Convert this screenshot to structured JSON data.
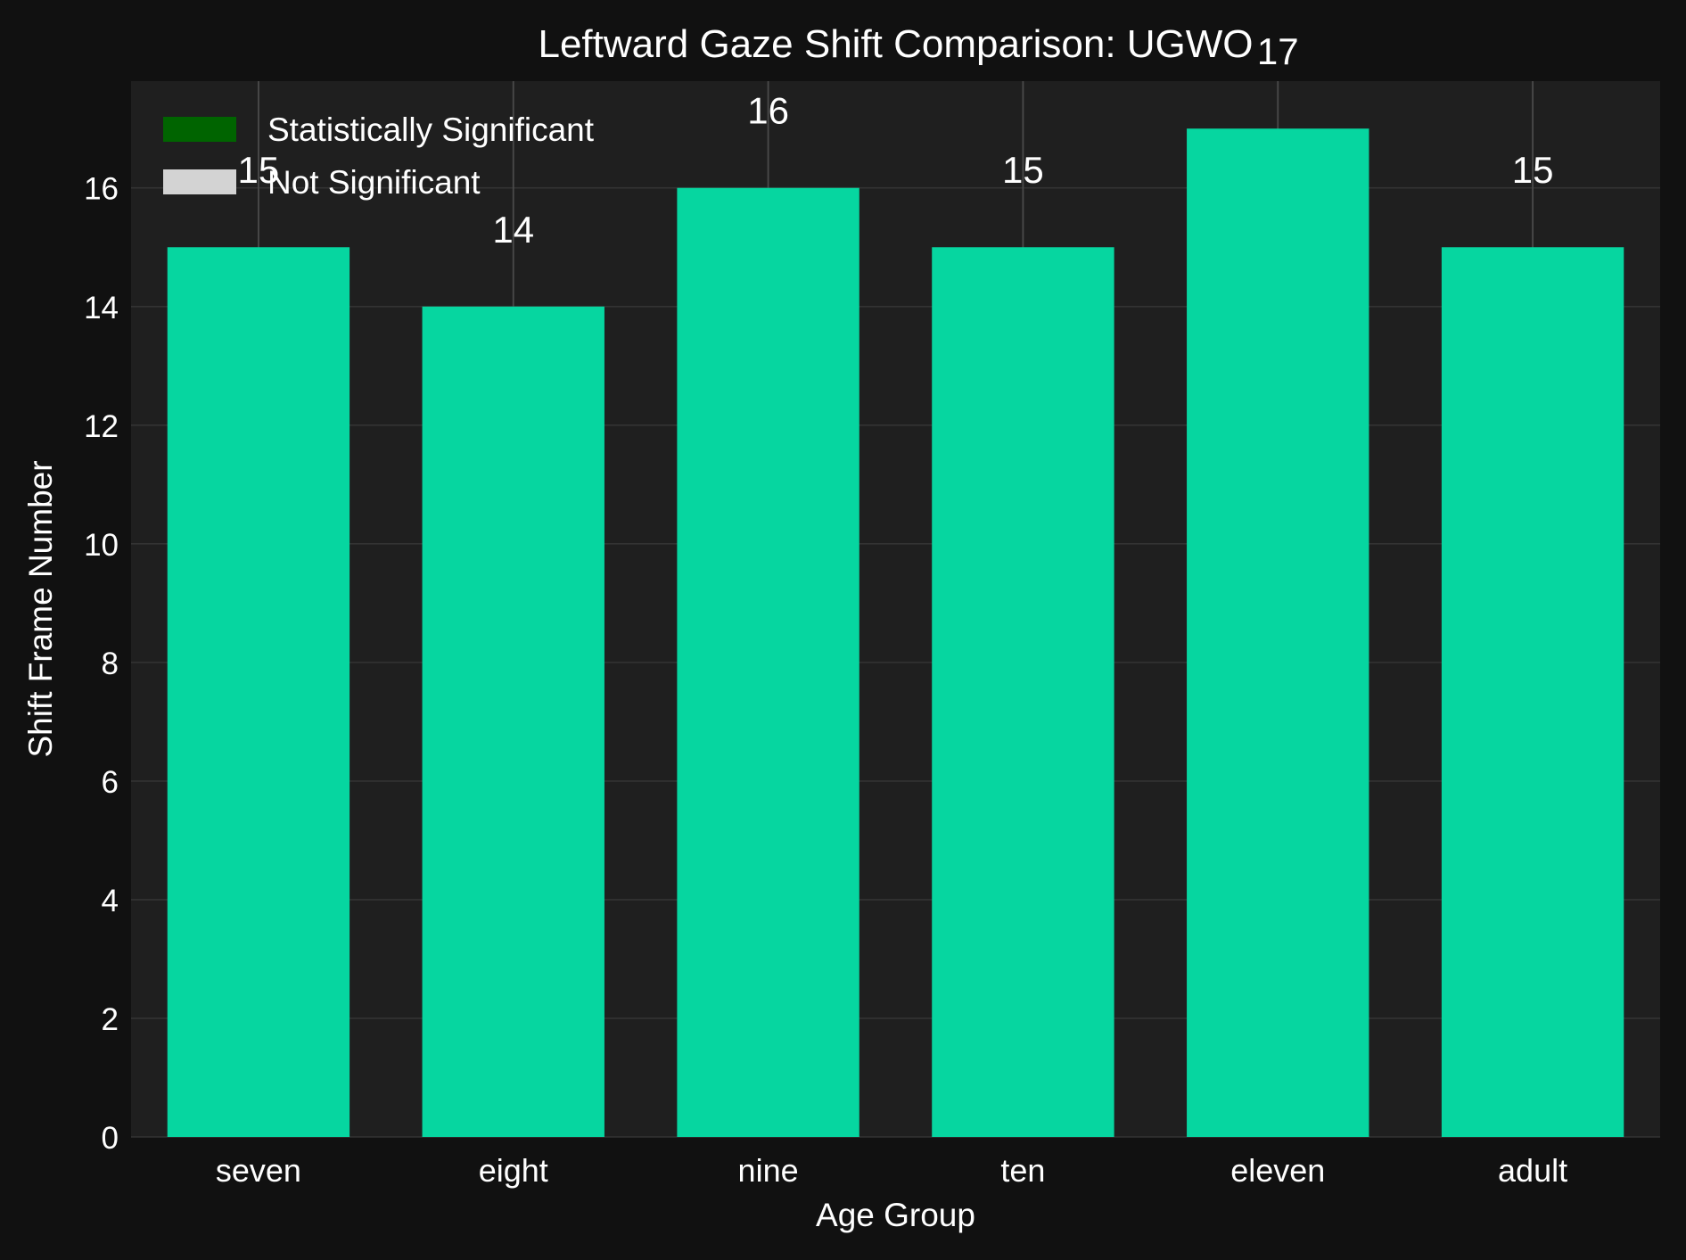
{
  "colors": {
    "figure_bg": "#111111",
    "axes_bg": "#1f1f1f",
    "bar": "#06d6a0",
    "grid": "#333333",
    "text": "#ffffff",
    "legend_significant": "#006400",
    "legend_not_significant": "#d3d3d3"
  },
  "chart_data": {
    "type": "bar",
    "title": "Leftward Gaze Shift Comparison: UGWO",
    "xlabel": "Age Group",
    "ylabel": "Shift Frame Number",
    "categories": [
      "seven",
      "eight",
      "nine",
      "ten",
      "eleven",
      "adult"
    ],
    "values": [
      15,
      14,
      16,
      15,
      17,
      15
    ],
    "data_labels": [
      "15",
      "14",
      "16",
      "15",
      "17",
      "15"
    ],
    "ylim": [
      0,
      17.8
    ],
    "yticks": [
      0,
      2,
      4,
      6,
      8,
      10,
      12,
      14,
      16
    ],
    "grid": true,
    "legend": {
      "placement": "top-left",
      "entries": [
        {
          "label": "Statistically Significant",
          "color": "#006400"
        },
        {
          "label": "Not Significant",
          "color": "#d3d3d3"
        }
      ]
    }
  }
}
